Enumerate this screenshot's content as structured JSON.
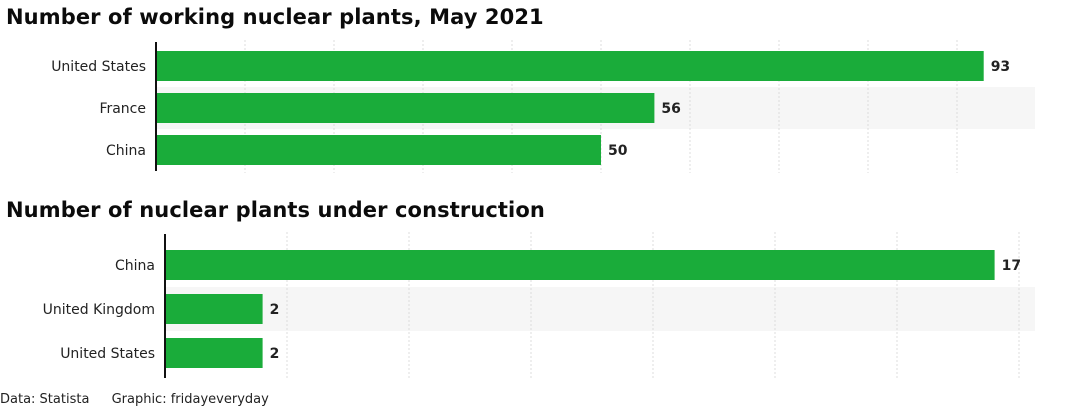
{
  "chart_data": [
    {
      "type": "bar",
      "orientation": "horizontal",
      "title": "Number of working nuclear plants, May 2021",
      "categories": [
        "United States",
        "France",
        "China"
      ],
      "values": [
        93,
        56,
        50
      ],
      "xlim": [
        0,
        100
      ],
      "grid": true,
      "bar_color": "#1aac3a"
    },
    {
      "type": "bar",
      "orientation": "horizontal",
      "title": "Number of nuclear plants under construction",
      "categories": [
        "China",
        "United Kingdom",
        "United States"
      ],
      "values": [
        17,
        2,
        2
      ],
      "xlim": [
        0,
        18
      ],
      "grid": true,
      "bar_color": "#1aac3a"
    }
  ],
  "footer": {
    "source": "Data: Statista",
    "graphic": "Graphic: fridayeveryday"
  }
}
